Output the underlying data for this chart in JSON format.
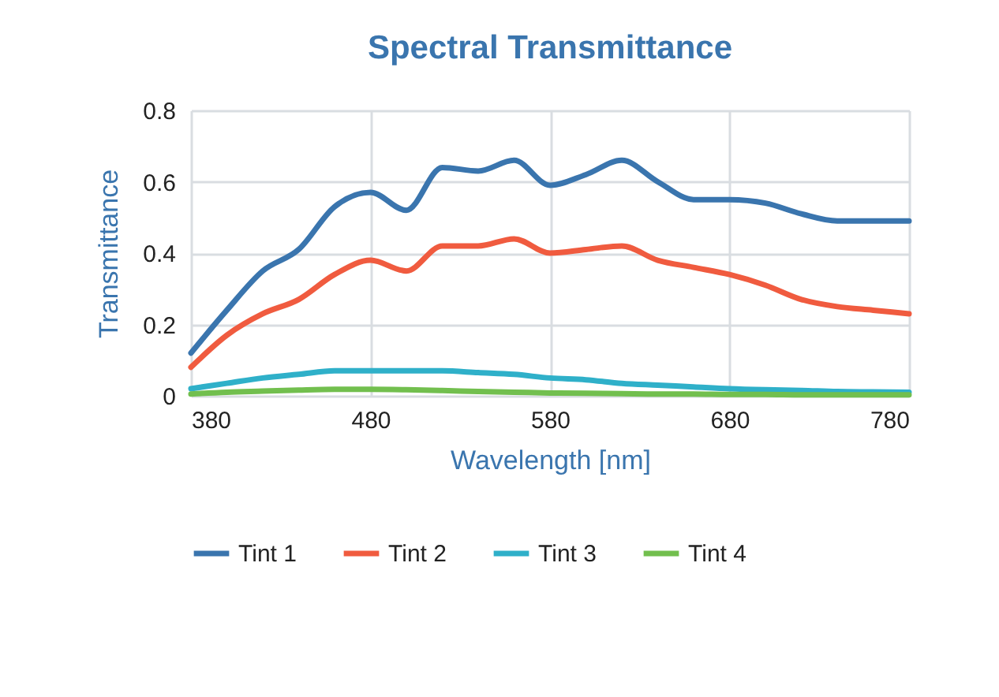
{
  "chart_data": {
    "type": "line",
    "title": "Spectral Transmittance",
    "xlabel": "Wavelength [nm]",
    "ylabel": "Transmittance",
    "x": [
      380,
      400,
      420,
      440,
      460,
      480,
      500,
      520,
      540,
      560,
      580,
      600,
      620,
      640,
      660,
      680,
      700,
      720,
      740,
      760,
      780
    ],
    "series": [
      {
        "name": "Tint 1",
        "color": "#3a75ae",
        "values": [
          0.12,
          0.24,
          0.35,
          0.41,
          0.53,
          0.57,
          0.52,
          0.64,
          0.63,
          0.66,
          0.59,
          0.62,
          0.66,
          0.6,
          0.55,
          0.55,
          0.54,
          0.51,
          0.49,
          0.49,
          0.49
        ]
      },
      {
        "name": "Tint 2",
        "color": "#f05b3f",
        "values": [
          0.08,
          0.17,
          0.23,
          0.27,
          0.34,
          0.38,
          0.35,
          0.42,
          0.42,
          0.44,
          0.4,
          0.41,
          0.42,
          0.38,
          0.36,
          0.34,
          0.31,
          0.27,
          0.25,
          0.24,
          0.23
        ]
      },
      {
        "name": "Tint 3",
        "color": "#2fb0c9",
        "values": [
          0.02,
          0.035,
          0.05,
          0.06,
          0.07,
          0.07,
          0.07,
          0.07,
          0.065,
          0.06,
          0.05,
          0.045,
          0.035,
          0.03,
          0.025,
          0.02,
          0.017,
          0.015,
          0.012,
          0.011,
          0.01
        ]
      },
      {
        "name": "Tint 4",
        "color": "#72bf4e",
        "values": [
          0.005,
          0.01,
          0.013,
          0.016,
          0.018,
          0.018,
          0.017,
          0.015,
          0.012,
          0.01,
          0.008,
          0.007,
          0.006,
          0.005,
          0.005,
          0.004,
          0.004,
          0.003,
          0.003,
          0.003,
          0.003
        ]
      }
    ],
    "xlim": [
      380,
      780
    ],
    "xticks": [
      380,
      480,
      580,
      680,
      780
    ],
    "ylim": [
      0,
      0.8
    ],
    "yticks": [
      0,
      0.2,
      0.4,
      0.6,
      0.8
    ],
    "grid": true,
    "legend": "bottom",
    "marker": "none",
    "line_style": "solid"
  }
}
